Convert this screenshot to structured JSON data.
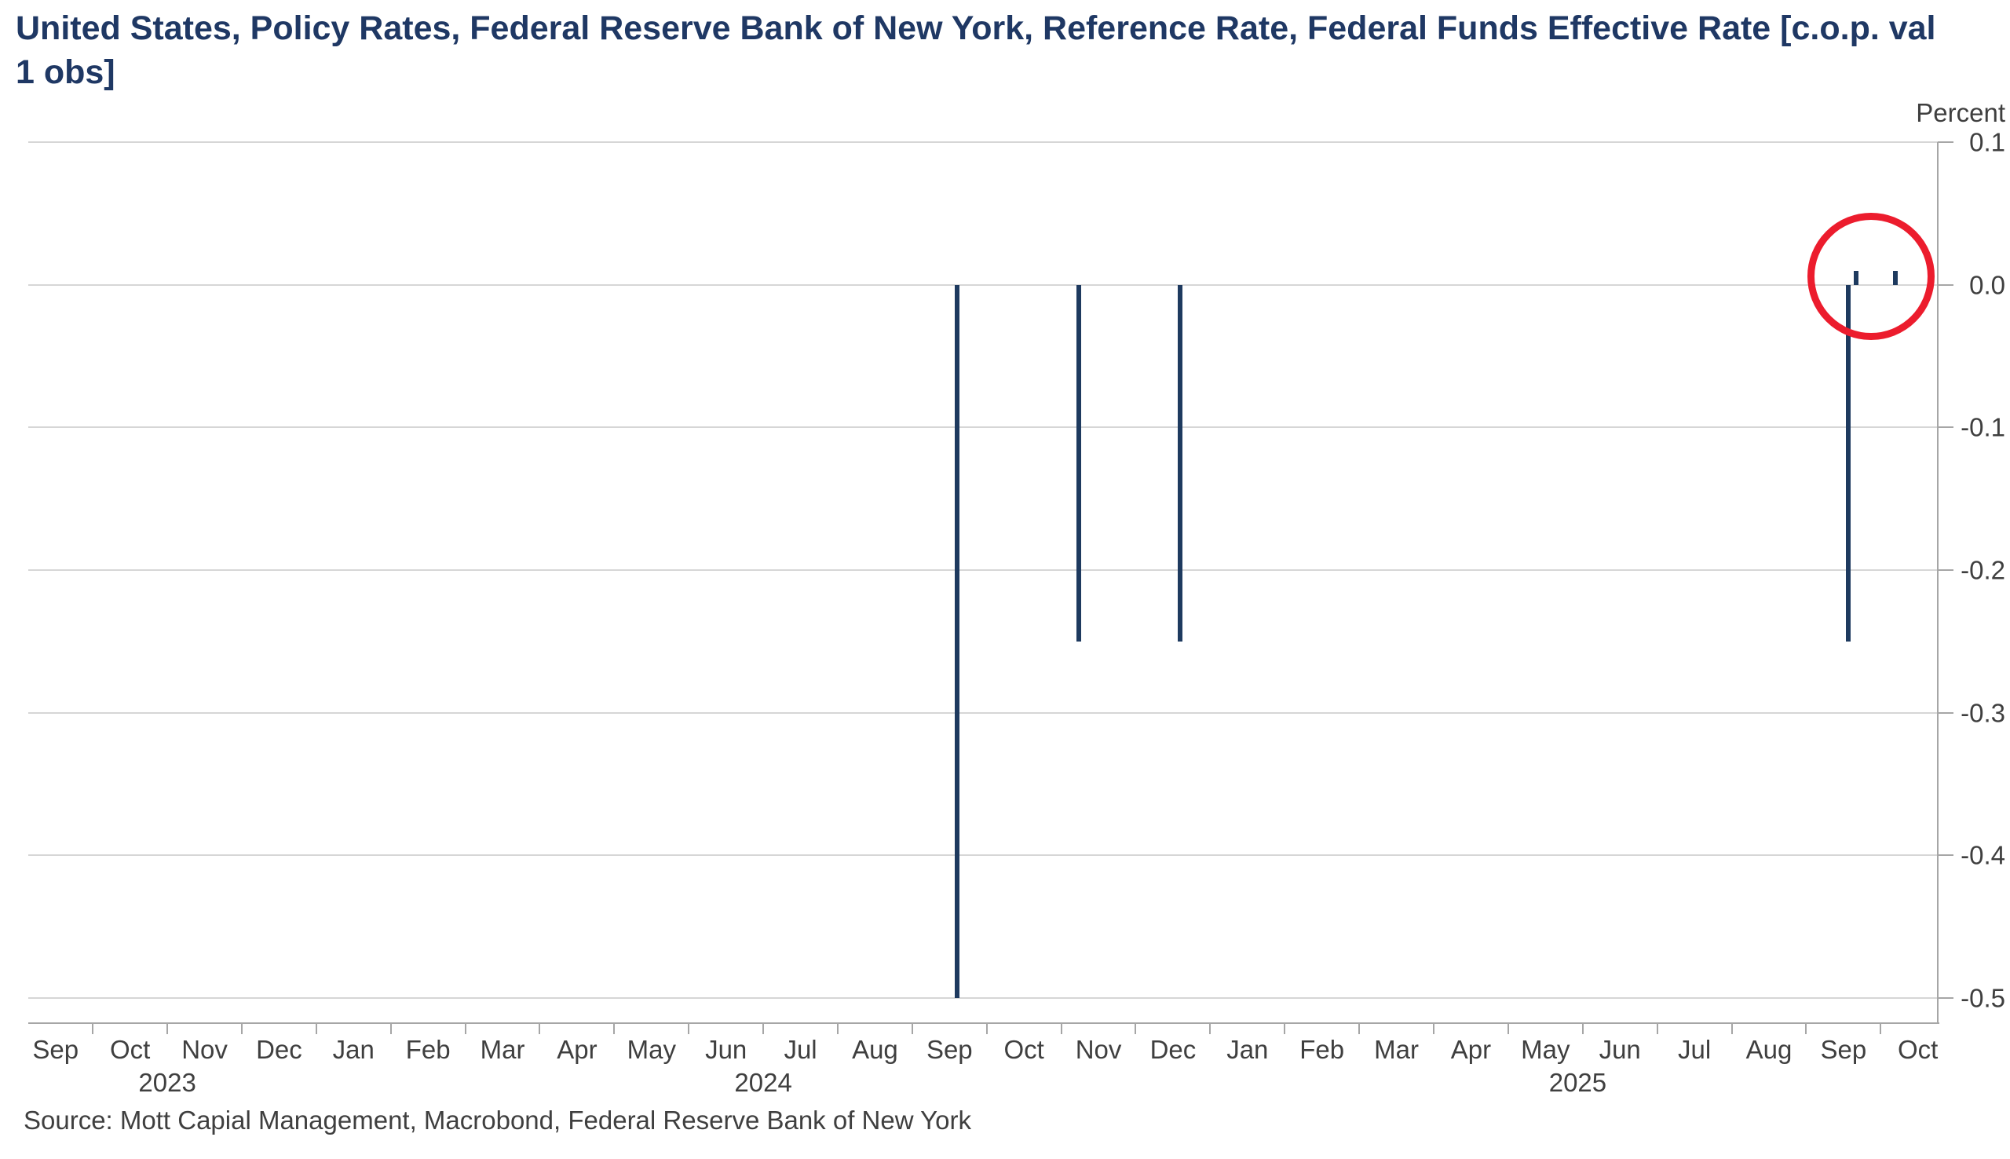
{
  "header": {
    "title_line1": "United States, Policy Rates, Federal Reserve Bank of New York, Reference Rate, Federal Funds Effective Rate [c.o.p. val",
    "title_line2": "1 obs]"
  },
  "footer": {
    "source": "Source: Mott Capial Management, Macrobond, Federal Reserve Bank of New York"
  },
  "chart_data": {
    "type": "bar",
    "title": "United States, Policy Rates, Federal Reserve Bank of New York, Reference Rate, Federal Funds Effective Rate [c.o.p. val 1 obs]",
    "ylabel": "Percent",
    "xlabel": "",
    "ylim": [
      -0.5,
      0.1
    ],
    "grid": true,
    "legend": "none",
    "y_ticks": [
      0.1,
      0.0,
      -0.1,
      -0.2,
      -0.3,
      -0.4,
      -0.5
    ],
    "y_tick_labels": [
      "0.1",
      "0.0",
      "-0.1",
      "-0.2",
      "-0.3",
      "-0.4",
      "-0.5"
    ],
    "x_range": [
      "2023-09-05",
      "2025-10-24"
    ],
    "x_month_labels": [
      "Sep",
      "Oct",
      "Nov",
      "Dec",
      "Jan",
      "Feb",
      "Mar",
      "Apr",
      "May",
      "Jun",
      "Jul",
      "Aug",
      "Sep",
      "Oct",
      "Nov",
      "Dec",
      "Jan",
      "Feb",
      "Mar",
      "Apr",
      "May",
      "Jun",
      "Jul",
      "Aug",
      "Sep",
      "Oct"
    ],
    "x_year_labels": [
      {
        "label": "2023",
        "position_date": "2023-11-01"
      },
      {
        "label": "2024",
        "position_date": "2024-07-01"
      },
      {
        "label": "2025",
        "position_date": "2025-05-29"
      }
    ],
    "bars": [
      {
        "date": "2024-09-19",
        "value": -0.5
      },
      {
        "date": "2024-11-08",
        "value": -0.25
      },
      {
        "date": "2024-12-19",
        "value": -0.25
      },
      {
        "date": "2025-09-18",
        "value": -0.25
      },
      {
        "date": "2025-09-21",
        "value": 0.01
      },
      {
        "date": "2025-10-07",
        "value": 0.01
      }
    ],
    "annotations": [
      {
        "type": "circle",
        "center_date": "2025-09-27",
        "center_value": 0.006,
        "radius_px": 81,
        "stroke_px": 9,
        "color": "#ec1c2d"
      }
    ],
    "bar_color": "#1e3a5f",
    "title_color": "#1f3864",
    "text_color": "#3f3f3f",
    "grid_color": "#d6d6d6",
    "axis_color": "#a6a6a6",
    "background_color": "#ffffff"
  }
}
